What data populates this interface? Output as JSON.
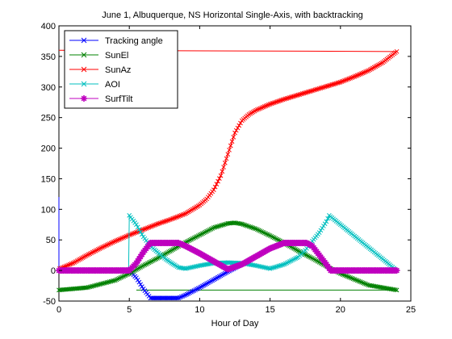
{
  "chart_data": {
    "type": "line",
    "title": "June 1, Albuquerque, NS Horizontal Single-Axis, with backtracking",
    "xlabel": "Hour of Day",
    "ylabel": "",
    "xlim": [
      0,
      25
    ],
    "ylim": [
      -50,
      400
    ],
    "x_ticks": [
      0,
      5,
      10,
      15,
      20,
      25
    ],
    "y_ticks": [
      -50,
      0,
      50,
      100,
      150,
      200,
      250,
      300,
      350,
      400
    ],
    "grid": false,
    "legend_position": "top-left",
    "series": [
      {
        "name": "Tracking angle",
        "color": "#0000ff",
        "marker": "x",
        "x": [
          0,
          5,
          5.5,
          6,
          6.5,
          7,
          7.5,
          8,
          8.5,
          9,
          10,
          11,
          12,
          13,
          14,
          15,
          16,
          17,
          17.6,
          18,
          18.5,
          19,
          19.3,
          24
        ],
        "y": [
          0,
          0,
          -12,
          -30,
          -45,
          -45,
          -45,
          -45,
          -45,
          -40,
          -28,
          -15,
          -2,
          10,
          23,
          36,
          45,
          45,
          45,
          40,
          25,
          10,
          0,
          0
        ]
      },
      {
        "name": "SunEl",
        "color": "#008000",
        "marker": "x",
        "x": [
          0,
          2,
          4,
          5,
          6,
          7,
          8,
          9,
          10,
          11,
          12,
          12.5,
          13,
          14,
          15,
          16,
          17,
          18,
          19,
          20,
          22,
          24
        ],
        "y": [
          -32,
          -28,
          -16,
          -5,
          8,
          20,
          33,
          46,
          58,
          70,
          77,
          78,
          76,
          68,
          57,
          45,
          32,
          20,
          7,
          -5,
          -24,
          -32
        ]
      },
      {
        "name": "SunAz",
        "color": "#ff0000",
        "marker": "x",
        "x": [
          0.05,
          1,
          2,
          3,
          4,
          5,
          6,
          7,
          8,
          9,
          10,
          10.5,
          11,
          11.5,
          12,
          12.5,
          13,
          13.5,
          14,
          15,
          16,
          17,
          18,
          19,
          20,
          21,
          22,
          23,
          24
        ],
        "y": [
          3,
          12,
          25,
          37,
          48,
          58,
          67,
          76,
          84,
          93,
          107,
          117,
          132,
          155,
          190,
          225,
          245,
          255,
          262,
          272,
          280,
          287,
          294,
          301,
          308,
          317,
          327,
          340,
          358
        ]
      },
      {
        "name": "AOI",
        "color": "#00bfbf",
        "marker": "x",
        "x": [
          0,
          4.95,
          5,
          5.5,
          6,
          6.5,
          7,
          7.5,
          8,
          8.5,
          9,
          10,
          11,
          12,
          13,
          14,
          15,
          16,
          17,
          17.5,
          18,
          18.5,
          19,
          19.2,
          24
        ],
        "y": [
          0,
          0,
          90,
          75,
          55,
          40,
          30,
          20,
          12,
          5,
          3,
          8,
          12,
          13,
          12,
          8,
          3,
          10,
          22,
          33,
          48,
          62,
          80,
          90,
          0
        ]
      },
      {
        "name": "SurfTilt",
        "color": "#bf00bf",
        "marker": "*",
        "x": [
          0,
          5,
          5.5,
          6,
          6.5,
          7,
          7.5,
          8,
          8.5,
          9,
          10,
          11,
          12,
          13,
          14,
          15,
          16,
          17,
          17.6,
          18,
          18.5,
          19,
          19.3,
          24
        ],
        "y": [
          0,
          0,
          12,
          30,
          45,
          45,
          45,
          45,
          45,
          40,
          28,
          15,
          2,
          10,
          23,
          36,
          45,
          45,
          45,
          40,
          25,
          10,
          0,
          0
        ]
      }
    ],
    "annotations": [
      {
        "color": "#ff0000",
        "x": [
          0,
          24
        ],
        "y": [
          360,
          358
        ],
        "desc": "SunAz wrap line"
      },
      {
        "color": "#0000ff",
        "x": [
          0,
          0
        ],
        "y": [
          0,
          120
        ],
        "desc": "spike at t=0"
      },
      {
        "color": "#008000",
        "x": [
          5.5,
          24
        ],
        "y": [
          -32,
          -32
        ],
        "desc": "SunEl floor"
      }
    ]
  }
}
